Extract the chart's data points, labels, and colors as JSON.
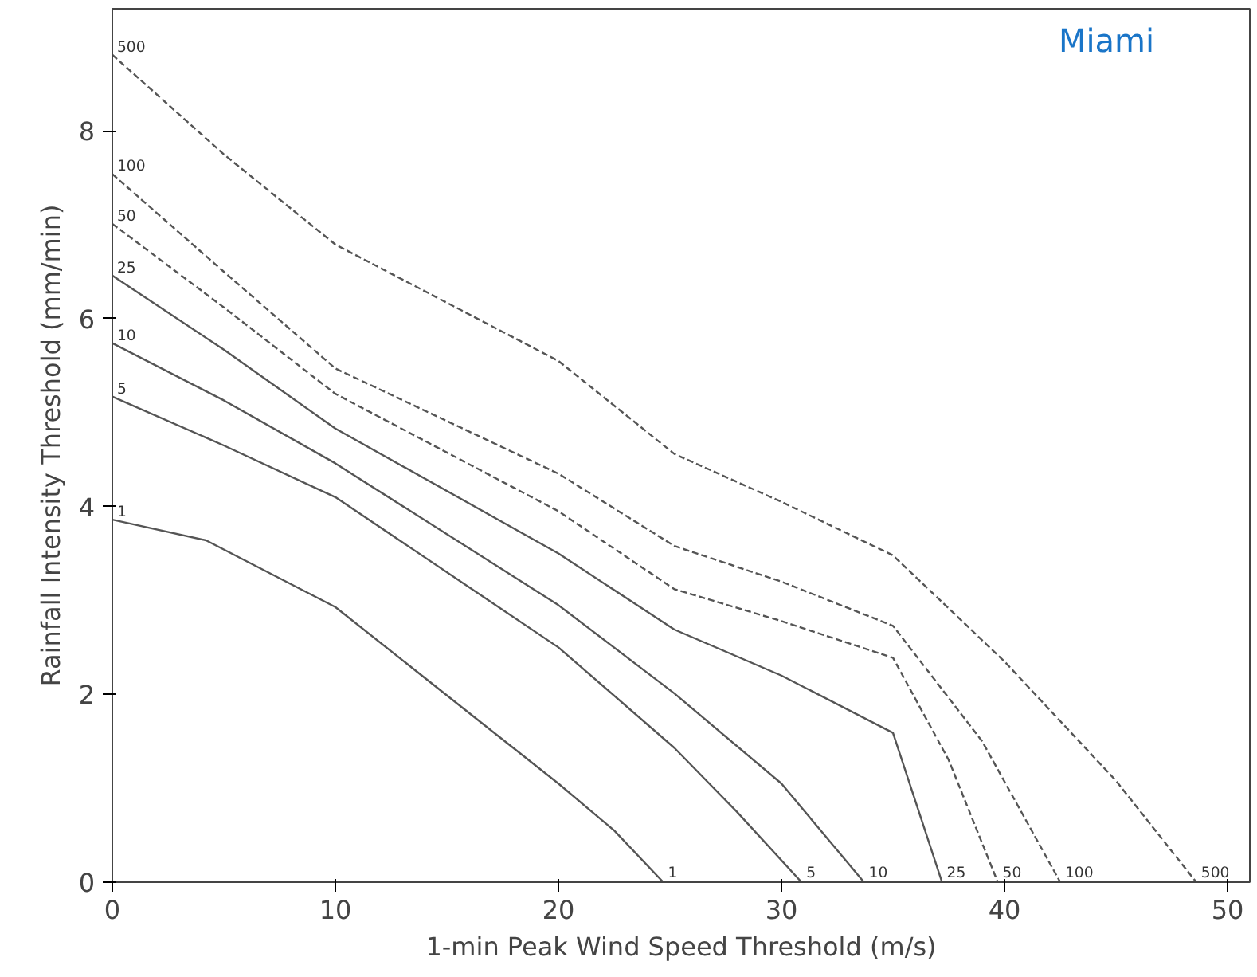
{
  "chart_data": {
    "type": "line",
    "title": "Miami",
    "xlabel": "1-min Peak Wind Speed Threshold (m/s)",
    "ylabel": "Rainfall Intensity Threshold (mm/min)",
    "xlim": [
      0,
      51
    ],
    "ylim": [
      0,
      9.3
    ],
    "xticks": [
      0,
      10,
      20,
      30,
      40,
      50
    ],
    "yticks": [
      0,
      2,
      4,
      6,
      8
    ],
    "grid": false,
    "marker": "none",
    "series": [
      {
        "name": "1",
        "color": "#555555",
        "line_style": "solid",
        "x": [
          0,
          4.2,
          10,
          16.8,
          20,
          22.5,
          24.7
        ],
        "values": [
          3.86,
          3.64,
          2.93,
          1.65,
          1.05,
          0.55,
          0
        ]
      },
      {
        "name": "5",
        "color": "#555555",
        "line_style": "solid",
        "x": [
          0,
          5,
          10,
          20,
          25.2,
          28,
          30.9
        ],
        "values": [
          5.17,
          4.65,
          4.1,
          2.5,
          1.43,
          0.75,
          0
        ]
      },
      {
        "name": "10",
        "color": "#555555",
        "line_style": "solid",
        "x": [
          0,
          5,
          10,
          20,
          25.2,
          30,
          33.7
        ],
        "values": [
          5.74,
          5.13,
          4.46,
          2.95,
          2.01,
          1.05,
          0
        ]
      },
      {
        "name": "25",
        "color": "#555555",
        "line_style": "solid",
        "x": [
          0,
          5,
          10,
          20,
          25.2,
          30,
          35,
          37.2
        ],
        "values": [
          6.46,
          5.67,
          4.83,
          3.5,
          2.69,
          2.2,
          1.59,
          0.0
        ]
      },
      {
        "name": "50",
        "color": "#555555",
        "line_style": "dashed",
        "x": [
          0,
          5,
          10,
          20,
          25.2,
          30,
          35,
          37.5,
          39.7
        ],
        "values": [
          7.01,
          6.12,
          5.2,
          3.95,
          3.12,
          2.78,
          2.39,
          1.3,
          0
        ]
      },
      {
        "name": "100",
        "color": "#555555",
        "line_style": "dashed",
        "x": [
          0,
          5,
          10,
          20,
          25.2,
          30,
          35,
          39,
          42.5
        ],
        "values": [
          7.54,
          6.5,
          5.47,
          4.35,
          3.58,
          3.2,
          2.73,
          1.5,
          0
        ]
      },
      {
        "name": "500",
        "color": "#555555",
        "line_style": "dashed",
        "x": [
          0,
          5,
          10,
          20,
          25.2,
          30,
          35,
          40,
          45,
          48.6
        ],
        "values": [
          8.81,
          7.75,
          6.79,
          5.55,
          4.56,
          4.05,
          3.48,
          2.35,
          1.08,
          0
        ]
      }
    ]
  }
}
